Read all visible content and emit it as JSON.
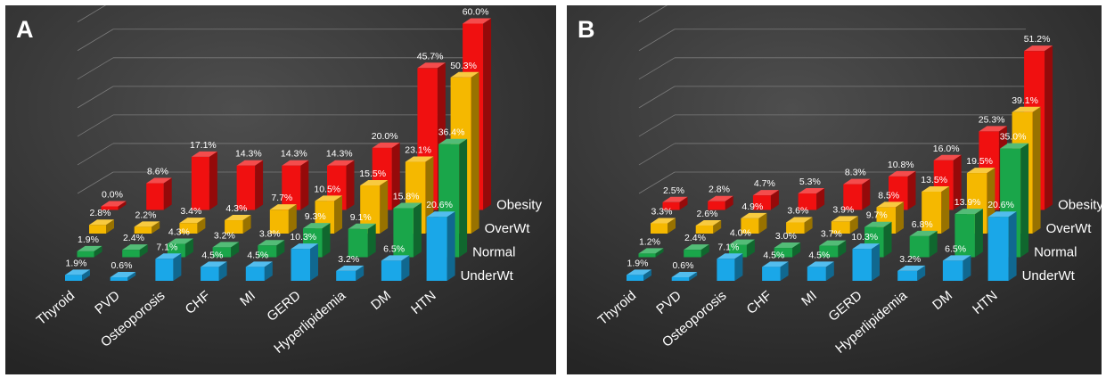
{
  "colors": {
    "UnderWt": "#1aa7e8",
    "Normal": "#1aa64a",
    "OverWt": "#f5b800",
    "Obesity": "#f01010",
    "background": "#3a3a3a",
    "text": "#ffffff"
  },
  "chart_data": [
    {
      "type": "bar",
      "panel_label": "A",
      "categories": [
        "Thyroid",
        "PVD",
        "Osteoporosis",
        "CHF",
        "MI",
        "GERD",
        "Hyperlipidemia",
        "DM",
        "HTN"
      ],
      "series": [
        {
          "name": "UnderWt",
          "values": [
            1.9,
            0.6,
            7.1,
            4.5,
            4.5,
            10.3,
            3.2,
            6.5,
            20.6
          ],
          "labels": [
            "1.9%",
            "0.6%",
            "7.1%",
            "4.5%",
            "4.5%",
            "10.3%",
            "3.2%",
            "6.5%",
            "20.6%"
          ]
        },
        {
          "name": "Normal",
          "values": [
            1.9,
            2.4,
            4.3,
            3.2,
            3.8,
            9.3,
            9.1,
            15.8,
            36.4
          ],
          "labels": [
            "1.9%",
            "2.4%",
            "4.3%",
            "3.2%",
            "3.8%",
            "9.3%",
            "9.1%",
            "15.8%",
            "36.4%"
          ]
        },
        {
          "name": "OverWt",
          "values": [
            2.8,
            2.2,
            3.4,
            4.3,
            7.7,
            10.5,
            15.5,
            23.1,
            50.3
          ],
          "labels": [
            "2.8%",
            "2.2%",
            "3.4%",
            "4.3%",
            "7.7%",
            "10.5%",
            "15.5%",
            "23.1%",
            "50.3%"
          ]
        },
        {
          "name": "Obesity",
          "values": [
            0.0,
            8.6,
            17.1,
            14.3,
            14.3,
            14.3,
            20.0,
            45.7,
            60.0
          ],
          "labels": [
            "0.0%",
            "8.6%",
            "17.1%",
            "14.3%",
            "14.3%",
            "14.3%",
            "20.0%",
            "45.7%",
            "60.0%"
          ]
        }
      ],
      "ylim": [
        0,
        60
      ],
      "grid": true,
      "legend": "right-side row labels"
    },
    {
      "type": "bar",
      "panel_label": "B",
      "categories": [
        "Thyroid",
        "PVD",
        "Osteoporosis",
        "CHF",
        "MI",
        "GERD",
        "Hyperlipidemia",
        "DM",
        "HTN"
      ],
      "series": [
        {
          "name": "UnderWt",
          "values": [
            1.9,
            0.6,
            7.1,
            4.5,
            4.5,
            10.3,
            3.2,
            6.5,
            20.6
          ],
          "labels": [
            "1.9%",
            "0.6%",
            "7.1%",
            "4.5%",
            "4.5%",
            "10.3%",
            "3.2%",
            "6.5%",
            "20.6%"
          ]
        },
        {
          "name": "Normal",
          "values": [
            1.2,
            2.4,
            4.0,
            3.0,
            3.7,
            9.7,
            6.8,
            13.9,
            35.0
          ],
          "labels": [
            "1.2%",
            "2.4%",
            "4.0%",
            "3.0%",
            "3.7%",
            "9.7%",
            "6.8%",
            "13.9%",
            "35.0%"
          ]
        },
        {
          "name": "OverWt",
          "values": [
            3.3,
            2.6,
            4.9,
            3.6,
            3.9,
            8.5,
            13.5,
            19.5,
            39.1
          ],
          "labels": [
            "3.3%",
            "2.6%",
            "4.9%",
            "3.6%",
            "3.9%",
            "8.5%",
            "13.5%",
            "19.5%",
            "39.1%"
          ]
        },
        {
          "name": "Obesity",
          "values": [
            2.5,
            2.8,
            4.7,
            5.3,
            8.3,
            10.8,
            16.0,
            25.3,
            51.2
          ],
          "labels": [
            "2.5%",
            "2.8%",
            "4.7%",
            "5.3%",
            "8.3%",
            "10.8%",
            "16.0%",
            "25.3%",
            "51.2%"
          ]
        }
      ],
      "ylim": [
        0,
        60
      ],
      "grid": true,
      "legend": "right-side row labels"
    }
  ]
}
